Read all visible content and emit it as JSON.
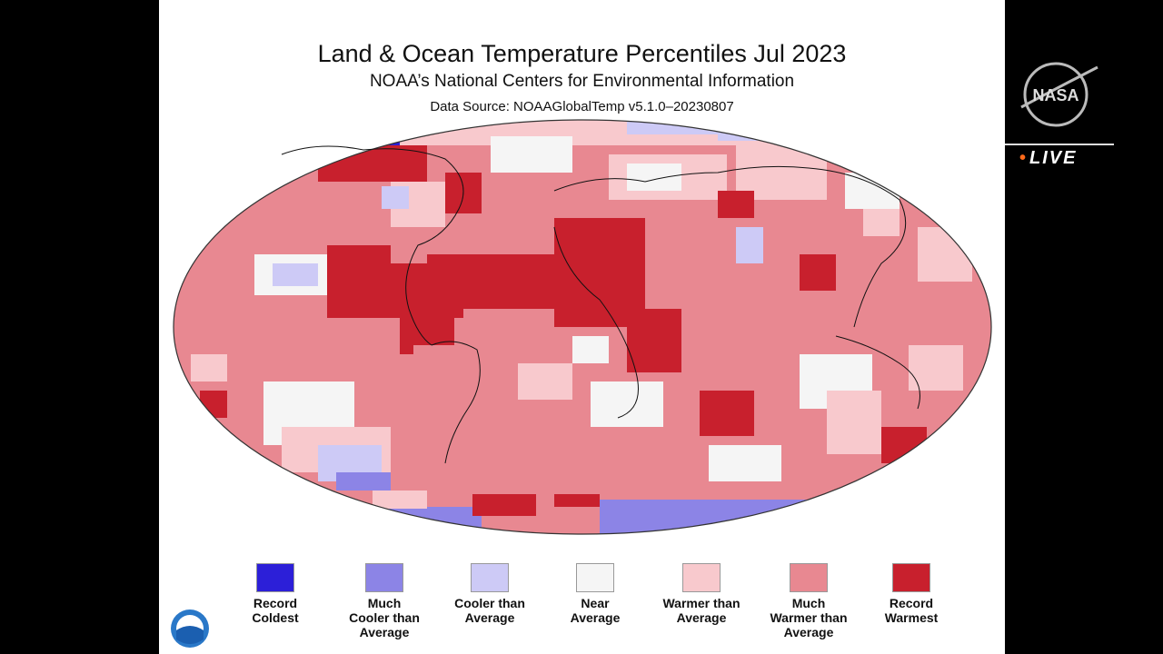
{
  "header": {
    "title": "Land & Ocean Temperature Percentiles Jul 2023",
    "subtitle": "NOAA’s National Centers for Environmental Information",
    "source": "Data Source: NOAAGlobalTemp v5.1.0–20230807"
  },
  "legend": [
    {
      "line1": "Record",
      "line2": "Coldest",
      "line3": "",
      "color": "#2c1fd8"
    },
    {
      "line1": "Much",
      "line2": "Cooler than",
      "line3": "Average",
      "color": "#8c84e6"
    },
    {
      "line1": "Cooler than",
      "line2": "Average",
      "line3": "",
      "color": "#cdcaf6"
    },
    {
      "line1": "Near",
      "line2": "Average",
      "line3": "",
      "color": "#f5f5f5"
    },
    {
      "line1": "Warmer than",
      "line2": "Average",
      "line3": "",
      "color": "#f8c9cd"
    },
    {
      "line1": "Much",
      "line2": "Warmer than",
      "line3": "Average",
      "color": "#e88891"
    },
    {
      "line1": "Record",
      "line2": "Warmest",
      "line3": "",
      "color": "#c8202d"
    }
  ],
  "overlay": {
    "live_label": "LIVE",
    "logo_text": "NASA"
  },
  "colors": {
    "record_coldest": "#2c1fd8",
    "much_cooler": "#8c84e6",
    "cooler": "#cdcaf6",
    "near": "#f5f5f5",
    "warmer": "#f8c9cd",
    "much_warmer": "#e88891",
    "record_warmest": "#c8202d",
    "live_accent": "#ff6a1a"
  }
}
